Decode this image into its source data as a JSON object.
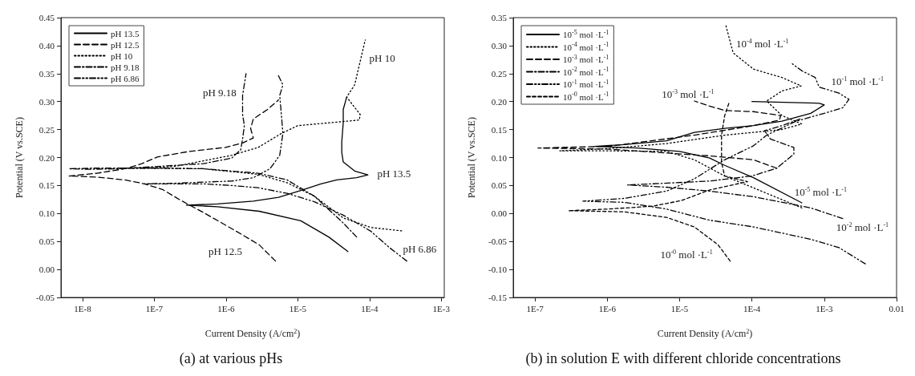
{
  "chart_data": [
    {
      "type": "line",
      "title": "(a) at various pHs",
      "xlabel": "Current Density (A/cm$^{2}$)",
      "ylabel": "Potential (V vs.SCE)",
      "log": "x",
      "xlim": [
        5e-09,
        0.0011
      ],
      "xticks": [
        {
          "value": 1e-08,
          "label": "1E-8"
        },
        {
          "value": 1e-07,
          "label": "1E-7"
        },
        {
          "value": 1e-06,
          "label": "1E-6"
        },
        {
          "value": 1e-05,
          "label": "1E-5"
        },
        {
          "value": 0.0001,
          "label": "1E-4"
        },
        {
          "value": 0.001,
          "label": "1E-3"
        }
      ],
      "ylim": [
        -0.05,
        0.45
      ],
      "yticks": [
        -0.05,
        {
          "value": 0,
          "label": "0.00"
        },
        0.05,
        {
          "value": 0.1,
          "label": "0.10"
        },
        0.15,
        {
          "value": 0.2,
          "label": "0.20"
        },
        0.25,
        {
          "value": 0.3,
          "label": "0.30"
        },
        0.35,
        {
          "value": 0.4,
          "label": "0.40"
        },
        0.45
      ],
      "grid": false,
      "legend": "top left",
      "series": [
        {
          "name": "pH 13.5",
          "color": "#000000",
          "line_style": "solid",
          "x": [
            5e-05,
            2.7e-05,
            1.1e-05,
            2.9e-06,
            7.6e-07,
            2.8e-07,
            7.6e-07,
            2.4e-06,
            5.4e-06,
            1.1e-05,
            2.1e-05,
            3.5e-05,
            6.6e-05,
            9.5e-05,
            6.2e-05,
            4.3e-05,
            4.1e-05,
            4.1e-05,
            4.3e-05,
            4.3e-05,
            4.8e-05
          ],
          "values": [
            0.032,
            0.058,
            0.087,
            0.104,
            0.112,
            0.115,
            0.117,
            0.122,
            0.129,
            0.141,
            0.153,
            0.16,
            0.164,
            0.169,
            0.176,
            0.192,
            0.209,
            0.228,
            0.262,
            0.286,
            0.308
          ]
        },
        {
          "name": "pH 12.5",
          "color": "#000000",
          "line_style": "dashed",
          "x": [
            4.9e-06,
            2.9e-06,
            1.4e-06,
            4.8e-07,
            2.3e-07,
            1.3e-07,
            7.3e-08,
            3.9e-08,
            1.6e-08,
            6.5e-09,
            1.6e-08,
            3.9e-08,
            6.7e-08,
            1.1e-07,
            3.1e-07,
            9.8e-07,
            1.7e-06,
            2.4e-06,
            2.2e-06,
            2.4e-06,
            3.8e-06,
            5.4e-06
          ],
          "values": [
            0.015,
            0.044,
            0.068,
            0.102,
            0.124,
            0.143,
            0.153,
            0.16,
            0.165,
            0.167,
            0.172,
            0.18,
            0.189,
            0.201,
            0.211,
            0.218,
            0.226,
            0.235,
            0.252,
            0.269,
            0.286,
            0.303
          ]
        },
        {
          "name": "pH 10",
          "color": "#000000",
          "line_style": "dotted",
          "x": [
            0.00028,
            0.000105,
            4.3e-05,
            1.7e-05,
            7.1e-06,
            2.8e-06,
            4.8e-07,
            1e-07,
            3.3e-08,
            1e-07,
            1.9e-07,
            1.2e-06,
            2.8e-06,
            5.9e-06,
            1e-05,
            2.7e-05,
            7.2e-05,
            7.4e-05,
            4.8e-05,
            6.2e-05,
            8.7e-05
          ],
          "values": [
            0.069,
            0.075,
            0.092,
            0.131,
            0.155,
            0.17,
            0.18,
            0.181,
            0.181,
            0.182,
            0.184,
            0.204,
            0.218,
            0.243,
            0.257,
            0.262,
            0.267,
            0.277,
            0.308,
            0.33,
            0.41
          ]
        },
        {
          "name": "pH 9.18",
          "color": "#000000",
          "line_style": "dashed",
          "x": [
            6.6e-05,
            4.3e-05,
            1.7e-05,
            7.1e-06,
            2.8e-06,
            4.8e-07,
            7.9e-08,
            1.3e-08,
            6.5e-09,
            1.3e-08,
            3.3e-08,
            4.8e-07,
            1.2e-06,
            1.6e-06,
            1.7e-06,
            1.8e-06,
            1.7e-06,
            1.7e-06,
            1.9e-06
          ],
          "values": [
            0.058,
            0.083,
            0.131,
            0.16,
            0.172,
            0.18,
            0.181,
            0.181,
            0.18,
            0.179,
            0.18,
            0.189,
            0.199,
            0.214,
            0.233,
            0.257,
            0.277,
            0.311,
            0.35
          ]
        },
        {
          "name": "pH 6.86",
          "color": "#000000",
          "line_style": "dashed",
          "x": [
            0.00033,
            0.00019,
            0.000105,
            4.3e-05,
            1.7e-05,
            7.1e-06,
            2.8e-06,
            1.2e-06,
            4.8e-07,
            1.9e-07,
            7.3e-08,
            1.9e-07,
            1.2e-06,
            2.4e-06,
            4.1e-06,
            5.6e-06,
            6.2e-06,
            5.9e-06,
            5.6e-06,
            6.2e-06,
            5.2e-06
          ],
          "values": [
            0.015,
            0.039,
            0.068,
            0.097,
            0.121,
            0.136,
            0.146,
            0.15,
            0.153,
            0.153,
            0.153,
            0.154,
            0.158,
            0.164,
            0.18,
            0.204,
            0.243,
            0.277,
            0.311,
            0.33,
            0.35
          ]
        }
      ],
      "annotations": [
        "pH 10",
        "pH 9.18",
        "pH 13.5",
        "pH 12.5",
        "pH 6.86"
      ]
    },
    {
      "type": "line",
      "title": "(b) in solution E with different chloride concentrations",
      "xlabel": "Current Density (A/cm$^{2}$)",
      "ylabel": "Potential (V vs.SCE)",
      "log": "x",
      "xlim": [
        5e-08,
        0.01
      ],
      "xticks": [
        {
          "value": 1e-07,
          "label": "1E-7"
        },
        {
          "value": 1e-06,
          "label": "1E-6"
        },
        {
          "value": 1e-05,
          "label": "1E-5"
        },
        {
          "value": 0.0001,
          "label": "1E-4"
        },
        {
          "value": 0.001,
          "label": "1E-3"
        },
        0.01
      ],
      "ylim": [
        -0.15,
        0.35
      ],
      "yticks": [
        -0.15,
        {
          "value": -0.1,
          "label": "-0.10"
        },
        -0.05,
        {
          "value": 0,
          "label": "0.00"
        },
        0.05,
        {
          "value": 0.1,
          "label": "0.10"
        },
        0.15,
        {
          "value": 0.2,
          "label": "0.20"
        },
        0.25,
        {
          "value": 0.3,
          "label": "0.30"
        },
        0.35
      ],
      "grid": false,
      "legend": "top left",
      "series": [
        {
          "name": "10$^{-5}$ mol ·L$^{-1}$",
          "color": "#000000",
          "line_style": "solid",
          "x": [
            0.00049,
            0.000105,
            4.2e-05,
            2.6e-05,
            1e-05,
            2.6e-06,
            6.7e-07,
            1.7e-06,
            6.6e-06,
            1.6e-05,
            4.2e-05,
            0.000105,
            0.00026,
            0.00065,
            0.001,
            0.00086,
            0.0001
          ],
          "values": [
            0.019,
            0.064,
            0.086,
            0.099,
            0.111,
            0.117,
            0.12,
            0.123,
            0.13,
            0.145,
            0.152,
            0.157,
            0.165,
            0.179,
            0.194,
            0.197,
            0.2
          ]
        },
        {
          "name": "10$^{-4}$ mol ·L$^{-1}$",
          "color": "#000000",
          "line_style": "dotted",
          "x": [
            0.00049,
            0.0001,
            4.2e-05,
            1.6e-05,
            6.6e-06,
            1.05e-06,
            2.2e-07,
            1.05e-06,
            6.6e-06,
            4.2e-05,
            0.00026,
            0.00049,
            0.00026,
            0.00016,
            0.00026,
            0.00048,
            0.00026,
            0.000105,
            5.5e-05,
            4.3e-05
          ],
          "values": [
            0.01,
            0.047,
            0.067,
            0.096,
            0.111,
            0.112,
            0.112,
            0.116,
            0.125,
            0.14,
            0.15,
            0.16,
            0.175,
            0.201,
            0.219,
            0.228,
            0.243,
            0.258,
            0.287,
            0.339
          ]
        },
        {
          "name": "10$^{-3}$ mol ·L$^{-1}$",
          "color": "#000000",
          "line_style": "dashed",
          "x": [
            0.00022,
            0.000105,
            2.6e-05,
            6.6e-06,
            1.05e-06,
            1.1e-07,
            1.05e-06,
            1.6e-05,
            0.000105,
            0.00024,
            0.00025,
            0.000105,
            4.2e-05,
            2.6e-05,
            1.6e-05
          ],
          "values": [
            0.081,
            0.096,
            0.103,
            0.108,
            0.115,
            0.117,
            0.12,
            0.14,
            0.157,
            0.167,
            0.175,
            0.182,
            0.184,
            0.192,
            0.201
          ]
        },
        {
          "name": "10$^{-2}$ mol ·L$^{-1}$",
          "color": "#000000",
          "line_style": "dashed",
          "x": [
            0.0018,
            0.00065,
            0.000105,
            2.6e-05,
            6.6e-06,
            1.9e-06,
            4.2e-06,
            2.6e-05,
            0.0001,
            0.00022,
            0.00038,
            0.00038,
            0.00018,
            0.00015,
            0.00026,
            0.00049
          ],
          "values": [
            -0.009,
            0.01,
            0.03,
            0.04,
            0.047,
            0.051,
            0.053,
            0.058,
            0.067,
            0.081,
            0.106,
            0.118,
            0.133,
            0.148,
            0.157,
            0.17
          ]
        },
        {
          "name": "10$^{-1}$ mol ·L$^{-1}$",
          "color": "#000000",
          "line_style": "dashed",
          "x": [
            0.0037,
            0.0016,
            0.00065,
            0.000105,
            2.6e-05,
            6.6e-06,
            1.7e-06,
            4.6e-07,
            1.7e-06,
            6.6e-06,
            1.6e-05,
            4.2e-05,
            0.000105,
            0.00016,
            0.00041,
            0.001,
            0.0018,
            0.0022,
            0.0016,
            0.00085,
            0.00075,
            0.00049,
            0.00034
          ],
          "values": [
            -0.09,
            -0.061,
            -0.046,
            -0.024,
            -0.012,
            0.008,
            0.02,
            0.022,
            0.027,
            0.04,
            0.062,
            0.096,
            0.121,
            0.14,
            0.165,
            0.179,
            0.189,
            0.204,
            0.215,
            0.226,
            0.243,
            0.255,
            0.27
          ]
        },
        {
          "name": "10$^{-0}$ mol ·L$^{-1}$",
          "color": "#000000",
          "line_style": "dashed",
          "x": [
            5e-05,
            3.4e-05,
            1.6e-05,
            6.6e-06,
            1.7e-06,
            2.9e-07,
            1.05e-06,
            4.2e-06,
            1.05e-05,
            2.6e-05,
            8.7e-05,
            4.2e-05,
            3.8e-05,
            3.8e-05,
            4.2e-05,
            4.8e-05
          ],
          "values": [
            -0.085,
            -0.056,
            -0.024,
            -0.007,
            0.003,
            0.005,
            0.008,
            0.013,
            0.023,
            0.042,
            0.057,
            0.067,
            0.091,
            0.14,
            0.175,
            0.197
          ]
        }
      ],
      "annotations": [
        "10$^{-4}$ mol ·L$^{-1}$",
        "10$^{-1}$ mol ·L$^{-1}$",
        "10$^{-3}$ mol ·L$^{-1}$",
        "10$^{-5}$ mol ·L$^{-1}$",
        "10$^{-2}$ mol ·L$^{-1}$",
        "10$^{-0}$ mol ·L$^{-1}$"
      ]
    }
  ]
}
